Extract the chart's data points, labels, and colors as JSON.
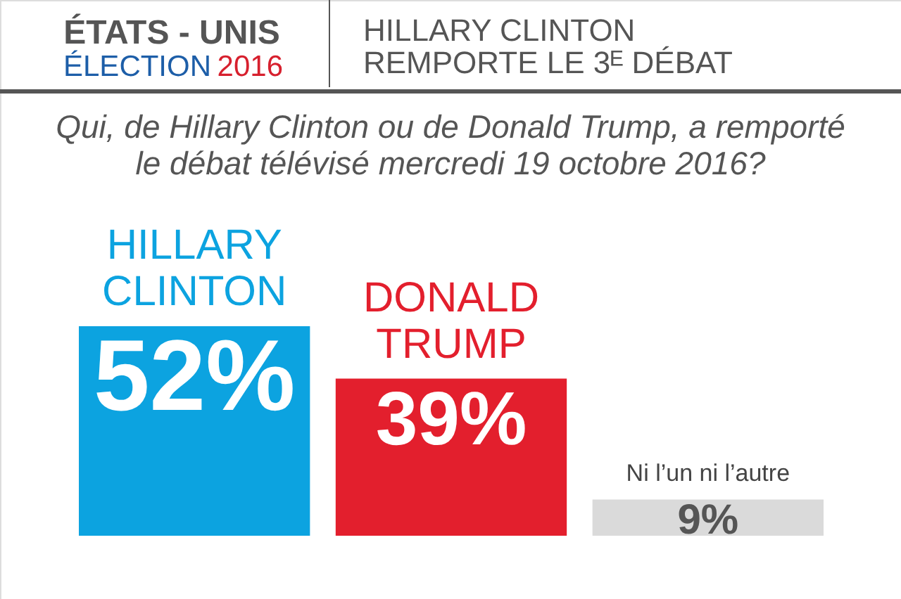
{
  "chart_data": {
    "type": "bar",
    "title": "HILLARY CLINTON\nREMPORTE LE 3ᴱ DÉBAT",
    "subtitle": "Qui, de Hillary Clinton ou de Donald Trump, a remporté\nle débat télévisé mercredi 19 octobre 2016?",
    "annotations": [
      "ÉTATS - UNIS",
      "ÉLECTION 2016"
    ],
    "categories": [
      "HILLARY\nCLINTON",
      "DONALD\nTRUMP",
      "Ni l’un ni l’autre"
    ],
    "values": [
      52,
      39,
      9
    ],
    "colors": [
      "#0ca3e0",
      "#e31f2d",
      "#dadada"
    ],
    "value_labels": [
      "52%",
      "39%",
      "9%"
    ],
    "tick_labels": "x"
  }
}
